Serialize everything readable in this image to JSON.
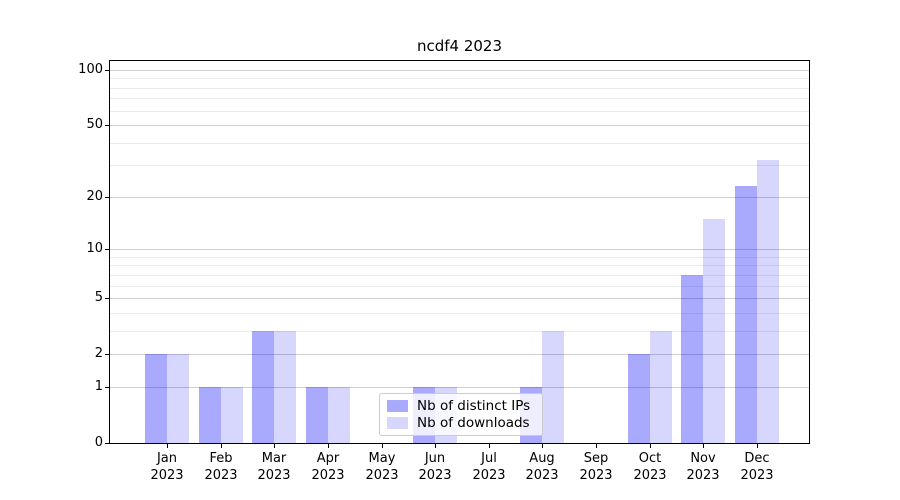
{
  "chart_data": {
    "type": "bar",
    "title": "ncdf4 2023",
    "categories": [
      "Jan",
      "Feb",
      "Mar",
      "Apr",
      "May",
      "Jun",
      "Jul",
      "Aug",
      "Sep",
      "Oct",
      "Nov",
      "Dec"
    ],
    "category_year": "2023",
    "series": [
      {
        "name": "Nb of distinct IPs",
        "color": "rgba(8,8,248,0.35)",
        "values": [
          2,
          1,
          3,
          1,
          0,
          1,
          0,
          1,
          0,
          2,
          7,
          23
        ]
      },
      {
        "name": "Nb of downloads",
        "color": "rgba(8,8,248,0.16)",
        "values": [
          2,
          1,
          3,
          1,
          0,
          1,
          0,
          3,
          0,
          3,
          15,
          32
        ]
      }
    ],
    "y_axis": {
      "scale": "log1p",
      "major_ticks": [
        0,
        1,
        2,
        5,
        10,
        20,
        50,
        100
      ],
      "minor_ticks": [
        3,
        4,
        6,
        7,
        8,
        9,
        30,
        40,
        60,
        70,
        80,
        90
      ],
      "max": 113
    },
    "legend_position": "lower center",
    "grid": "on"
  },
  "colors": {
    "background": "#ffffff",
    "grid_major": "#cfcfcf",
    "grid_minor": "#ebebeb",
    "spine": "#000000",
    "legend_border": "#cccccc",
    "bar_distinct_ips": "rgba(8,8,248,0.35)",
    "bar_downloads": "rgba(8,8,248,0.16)"
  }
}
